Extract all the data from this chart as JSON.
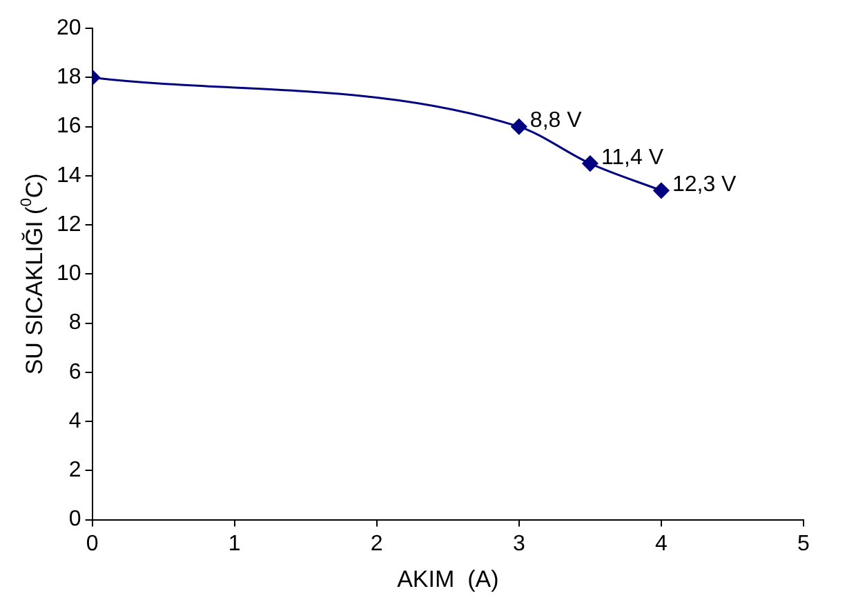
{
  "chart_data": {
    "type": "line",
    "xlabel": "AKIM  (A)",
    "ylabel": "SU SICAKLIĞI ($^{0}$C)",
    "x": [
      0,
      3,
      3.5,
      4
    ],
    "series": [
      {
        "color": "#000080",
        "values": [
          18,
          16,
          14.5,
          13.4
        ]
      }
    ],
    "xlim": [
      0,
      5
    ],
    "xticks": [
      0,
      1,
      2,
      3,
      4,
      5
    ],
    "ylim": [
      0,
      20
    ],
    "yticks": [
      0,
      2,
      4,
      6,
      8,
      10,
      12,
      14,
      16,
      18,
      20
    ],
    "grid": false,
    "legend": false,
    "marker": "diamond",
    "line_style": "solid",
    "annotations": [
      {
        "text": "8,8 V",
        "x": 3,
        "y": 16
      },
      {
        "text": "11,4 V",
        "x": 3.5,
        "y": 14.5
      },
      {
        "text": "12,3 V",
        "x": 4,
        "y": 13.4
      }
    ]
  }
}
